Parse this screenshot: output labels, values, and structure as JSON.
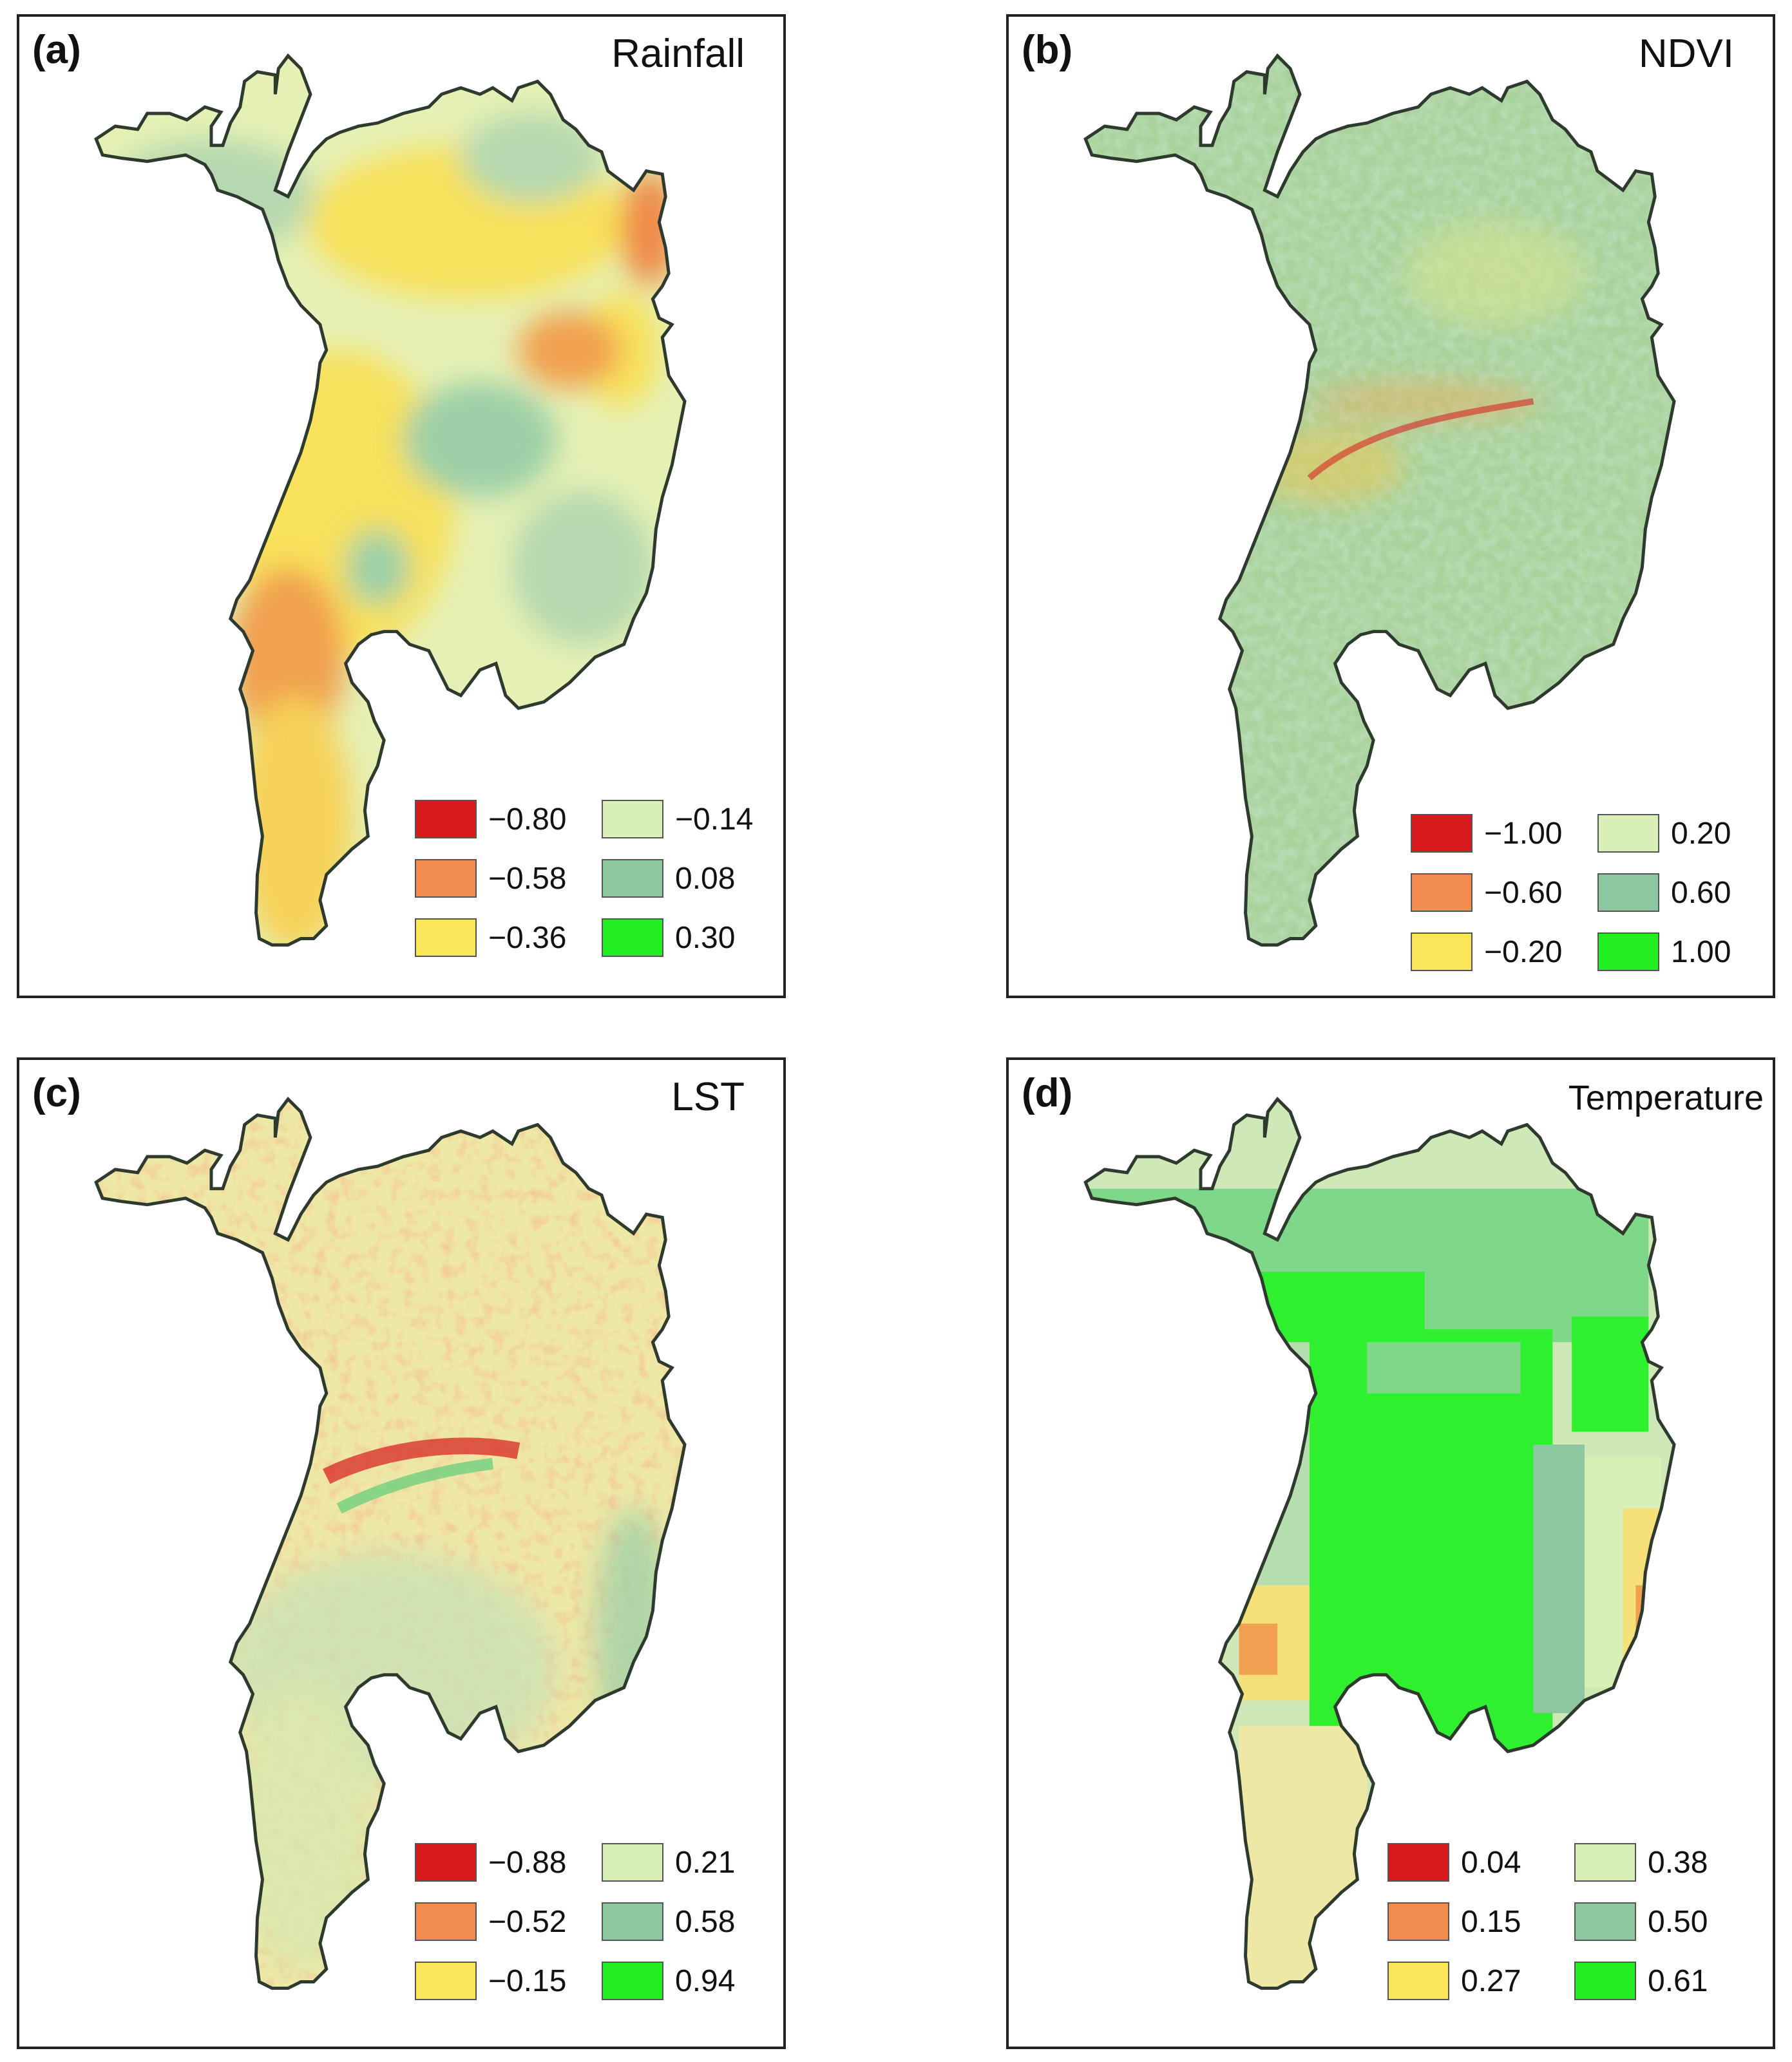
{
  "panels": [
    {
      "id": "a",
      "label": "(a)",
      "title": "Rainfall",
      "legend": [
        {
          "value": "−0.80",
          "color": "#d7191c"
        },
        {
          "value": "−0.14",
          "color": "#d9efb8"
        },
        {
          "value": "−0.58",
          "color": "#f28c50"
        },
        {
          "value": "0.08",
          "color": "#8dc7a0"
        },
        {
          "value": "−0.36",
          "color": "#fbe65a"
        },
        {
          "value": "0.30",
          "color": "#22ee22"
        }
      ]
    },
    {
      "id": "b",
      "label": "(b)",
      "title": "NDVI",
      "legend": [
        {
          "value": "−1.00",
          "color": "#d7191c"
        },
        {
          "value": "0.20",
          "color": "#d9efb8"
        },
        {
          "value": "−0.60",
          "color": "#f28c50"
        },
        {
          "value": "0.60",
          "color": "#8dc7a0"
        },
        {
          "value": "−0.20",
          "color": "#fbe65a"
        },
        {
          "value": "1.00",
          "color": "#22ee22"
        }
      ]
    },
    {
      "id": "c",
      "label": "(c)",
      "title": "LST",
      "legend": [
        {
          "value": "−0.88",
          "color": "#d7191c"
        },
        {
          "value": "0.21",
          "color": "#d9efb8"
        },
        {
          "value": "−0.52",
          "color": "#f28c50"
        },
        {
          "value": "0.58",
          "color": "#8dc7a0"
        },
        {
          "value": "−0.15",
          "color": "#fbe65a"
        },
        {
          "value": "0.94",
          "color": "#22ee22"
        }
      ]
    },
    {
      "id": "d",
      "label": "(d)",
      "title": "Temperature",
      "legend": [
        {
          "value": "0.04",
          "color": "#d7191c"
        },
        {
          "value": "0.38",
          "color": "#d9efb8"
        },
        {
          "value": "0.15",
          "color": "#f28c50"
        },
        {
          "value": "0.50",
          "color": "#8dc7a0"
        },
        {
          "value": "0.27",
          "color": "#fbe65a"
        },
        {
          "value": "0.61",
          "color": "#22ee22"
        }
      ]
    }
  ]
}
